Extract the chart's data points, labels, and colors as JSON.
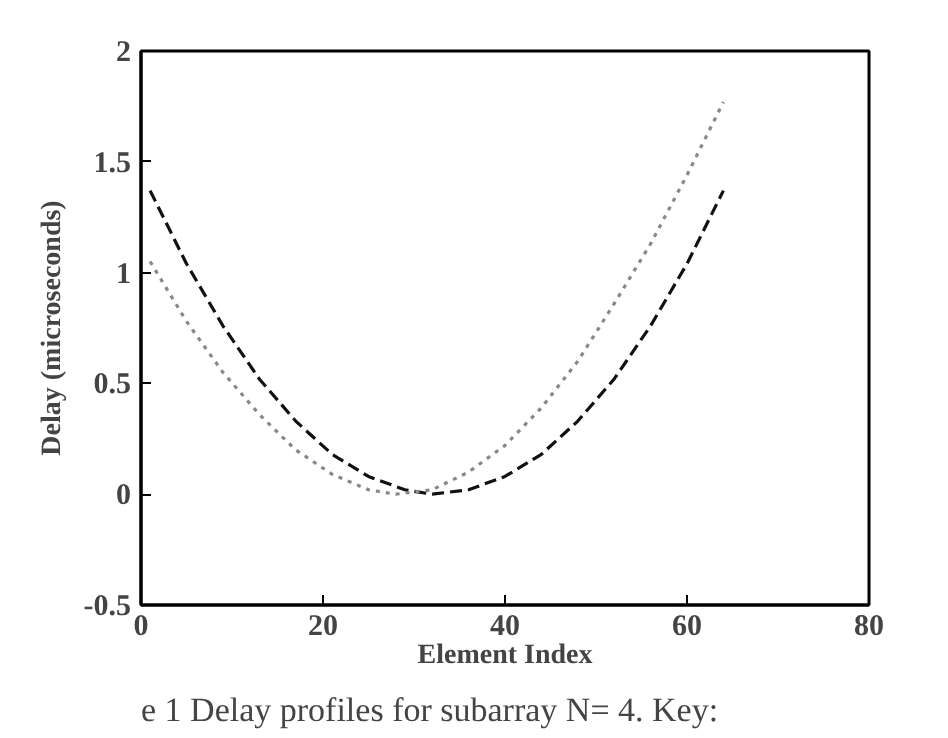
{
  "chart_data": {
    "type": "line",
    "xlabel": "Element Index",
    "ylabel": "Delay (microseconds)",
    "xlim": [
      0,
      80
    ],
    "ylim": [
      -0.5,
      2
    ],
    "xticks": [
      0,
      20,
      40,
      60,
      80
    ],
    "yticks": [
      -0.5,
      0,
      0.5,
      1,
      1.5,
      2
    ],
    "grid": false,
    "series": [
      {
        "color": "#111111",
        "line_style": "dashed",
        "x": [
          1,
          5,
          9,
          13,
          17,
          21,
          25,
          29,
          32,
          36,
          40,
          44,
          48,
          52,
          56,
          60,
          64
        ],
        "values": [
          1.37,
          1.04,
          0.76,
          0.52,
          0.33,
          0.18,
          0.08,
          0.02,
          0,
          0.02,
          0.08,
          0.18,
          0.33,
          0.52,
          0.76,
          1.04,
          1.37
        ]
      },
      {
        "color": "#888888",
        "line_style": "dotted",
        "x": [
          1,
          5,
          9,
          13,
          17,
          21,
          25,
          28,
          32,
          36,
          40,
          44,
          48,
          52,
          56,
          60,
          64
        ],
        "values": [
          1.05,
          0.78,
          0.55,
          0.36,
          0.2,
          0.09,
          0.02,
          0,
          0.02,
          0.1,
          0.22,
          0.39,
          0.6,
          0.86,
          1.13,
          1.44,
          1.77
        ]
      }
    ],
    "annotations": [
      "e 1 Delay profiles for subarray N= 4. Key:"
    ]
  }
}
